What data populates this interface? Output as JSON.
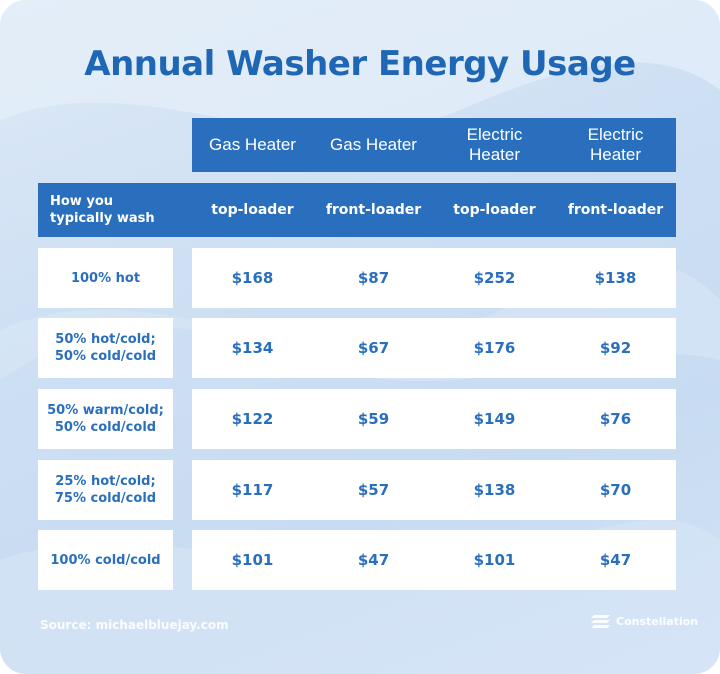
{
  "title": "Annual Washer Energy Usage",
  "columns": [
    {
      "heater": "Gas Heater",
      "type": "top-loader"
    },
    {
      "heater": "Gas Heater",
      "type": "front-loader"
    },
    {
      "heater": "Electric\nHeater",
      "type": "top-loader"
    },
    {
      "heater": "Electric\nHeater",
      "type": "front-loader"
    }
  ],
  "row_header": "How you\ntypically wash",
  "rows": [
    {
      "label": "100% hot",
      "values": [
        "$168",
        "$87",
        "$252",
        "$138"
      ]
    },
    {
      "label": "50% hot/cold;\n50% cold/cold",
      "values": [
        "$134",
        "$67",
        "$176",
        "$92"
      ]
    },
    {
      "label": "50% warm/cold;\n50% cold/cold",
      "values": [
        "$122",
        "$59",
        "$149",
        "$76"
      ]
    },
    {
      "label": "25% hot/cold;\n75% cold/cold",
      "values": [
        "$117",
        "$57",
        "$138",
        "$70"
      ]
    },
    {
      "label": "100% cold/cold",
      "values": [
        "$101",
        "$47",
        "$101",
        "$47"
      ]
    }
  ],
  "source": "Source: michaelbluejay.com",
  "brand": "Constellation",
  "colors": {
    "accent": "#2a6fbd",
    "title": "#1f67b4",
    "background": "#cddff3"
  },
  "icons": {
    "brand": "constellation-logo-icon"
  }
}
